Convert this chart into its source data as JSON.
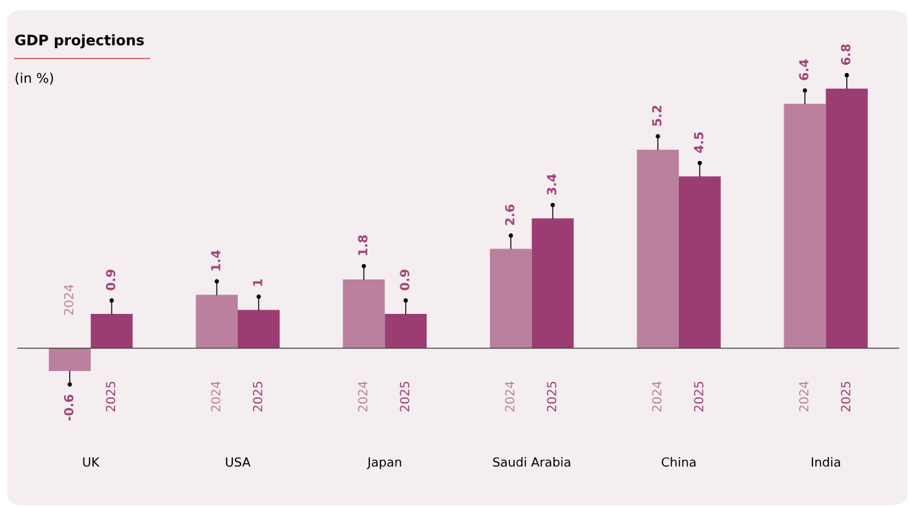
{
  "chart_data": {
    "type": "bar",
    "title": "GDP projections",
    "subtitle": "(in %)",
    "categories": [
      "UK",
      "USA",
      "Japan",
      "Saudi Arabia",
      "China",
      "India"
    ],
    "series": [
      {
        "name": "2024",
        "color": "#bb809e",
        "values": [
          -0.6,
          1.4,
          1.8,
          2.6,
          5.2,
          6.4
        ]
      },
      {
        "name": "2025",
        "color": "#9b3d72",
        "values": [
          0.9,
          1,
          0.9,
          3.4,
          4.5,
          6.8
        ]
      }
    ],
    "tick_labels": "x",
    "data_labels": true,
    "grid": false
  }
}
